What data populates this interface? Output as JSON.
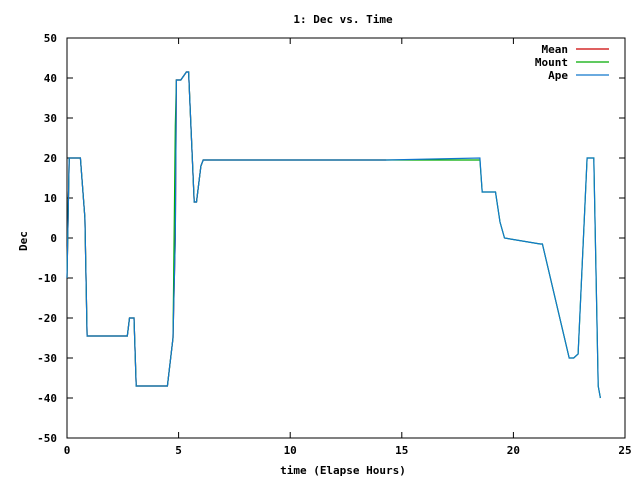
{
  "chart_data": {
    "type": "line",
    "title": "1: Dec vs. Time",
    "xlabel": "time (Elapse Hours)",
    "ylabel": "Dec",
    "xlim": [
      0,
      25
    ],
    "ylim": [
      -50,
      50
    ],
    "x_ticks": [
      0,
      5,
      10,
      15,
      20,
      25
    ],
    "x_tick_labels": [
      "0",
      "5",
      "10",
      "15",
      "20",
      "25"
    ],
    "y_ticks": [
      -50,
      -40,
      -30,
      -20,
      -10,
      0,
      10,
      20,
      30,
      40,
      50
    ],
    "y_tick_labels": [
      "-50",
      "-40",
      "-30",
      "-20",
      "-10",
      "0",
      "10",
      "20",
      "30",
      "40",
      "50"
    ],
    "grid": false,
    "legend_position": "top-right",
    "series": [
      {
        "name": "Mean",
        "color": "#cc0000",
        "x": [
          0,
          0.05,
          0.1,
          0.6,
          0.8,
          0.9,
          1.9,
          2.7,
          2.8,
          3.0,
          3.1,
          4.5,
          4.75,
          4.85,
          4.9,
          5.1,
          5.35,
          5.45,
          5.7,
          5.8,
          6.0,
          6.1,
          14.3
        ],
        "y": [
          -10,
          5,
          20,
          20,
          5,
          -24.5,
          -24.5,
          -24.5,
          -20,
          -20,
          -37,
          -37,
          -25,
          0,
          39.5,
          39.5,
          41.5,
          41.5,
          9,
          9,
          18,
          19.5,
          19.5
        ]
      },
      {
        "name": "Mount",
        "color": "#00aa00",
        "x": [
          0,
          0.05,
          0.1,
          0.6,
          0.8,
          0.9,
          1.9,
          2.7,
          2.8,
          3.0,
          3.1,
          4.5,
          4.75,
          4.8,
          4.85,
          4.9,
          5.1,
          5.35,
          5.45,
          5.7,
          5.8,
          6.0,
          6.1,
          18.5,
          18.6,
          19.2,
          19.4,
          19.6,
          21.2,
          21.3,
          22.5,
          22.7,
          22.9,
          23.3,
          23.6,
          23.8,
          23.9
        ],
        "y": [
          -10,
          5,
          20,
          20,
          5,
          -24.5,
          -24.5,
          -24.5,
          -20,
          -20,
          -37,
          -37,
          -25,
          0,
          28,
          39.5,
          39.5,
          41.5,
          41.5,
          9,
          9,
          18,
          19.5,
          19.5,
          11.5,
          11.5,
          4,
          0,
          -1.5,
          -1.5,
          -30,
          -30,
          -29,
          20,
          20,
          -37,
          -40
        ]
      },
      {
        "name": "Ape",
        "color": "#1177cc",
        "x": [
          0,
          0.05,
          0.1,
          0.6,
          0.8,
          0.9,
          1.9,
          2.7,
          2.8,
          3.0,
          3.1,
          4.5,
          4.75,
          4.85,
          4.9,
          5.1,
          5.35,
          5.45,
          5.7,
          5.8,
          6.0,
          6.1,
          14.3,
          18.5,
          18.6,
          19.2,
          19.4,
          19.6,
          21.2,
          21.3,
          22.5,
          22.7,
          22.9,
          23.3,
          23.6,
          23.8,
          23.9
        ],
        "y": [
          -10,
          5,
          20,
          20,
          5,
          -24.5,
          -24.5,
          -24.5,
          -20,
          -20,
          -37,
          -37,
          -25,
          0,
          39.5,
          39.5,
          41.5,
          41.5,
          9,
          9,
          18,
          19.5,
          19.5,
          20,
          11.5,
          11.5,
          4,
          0,
          -1.5,
          -1.5,
          -30,
          -30,
          -29,
          20,
          20,
          -37,
          -40
        ]
      }
    ]
  }
}
